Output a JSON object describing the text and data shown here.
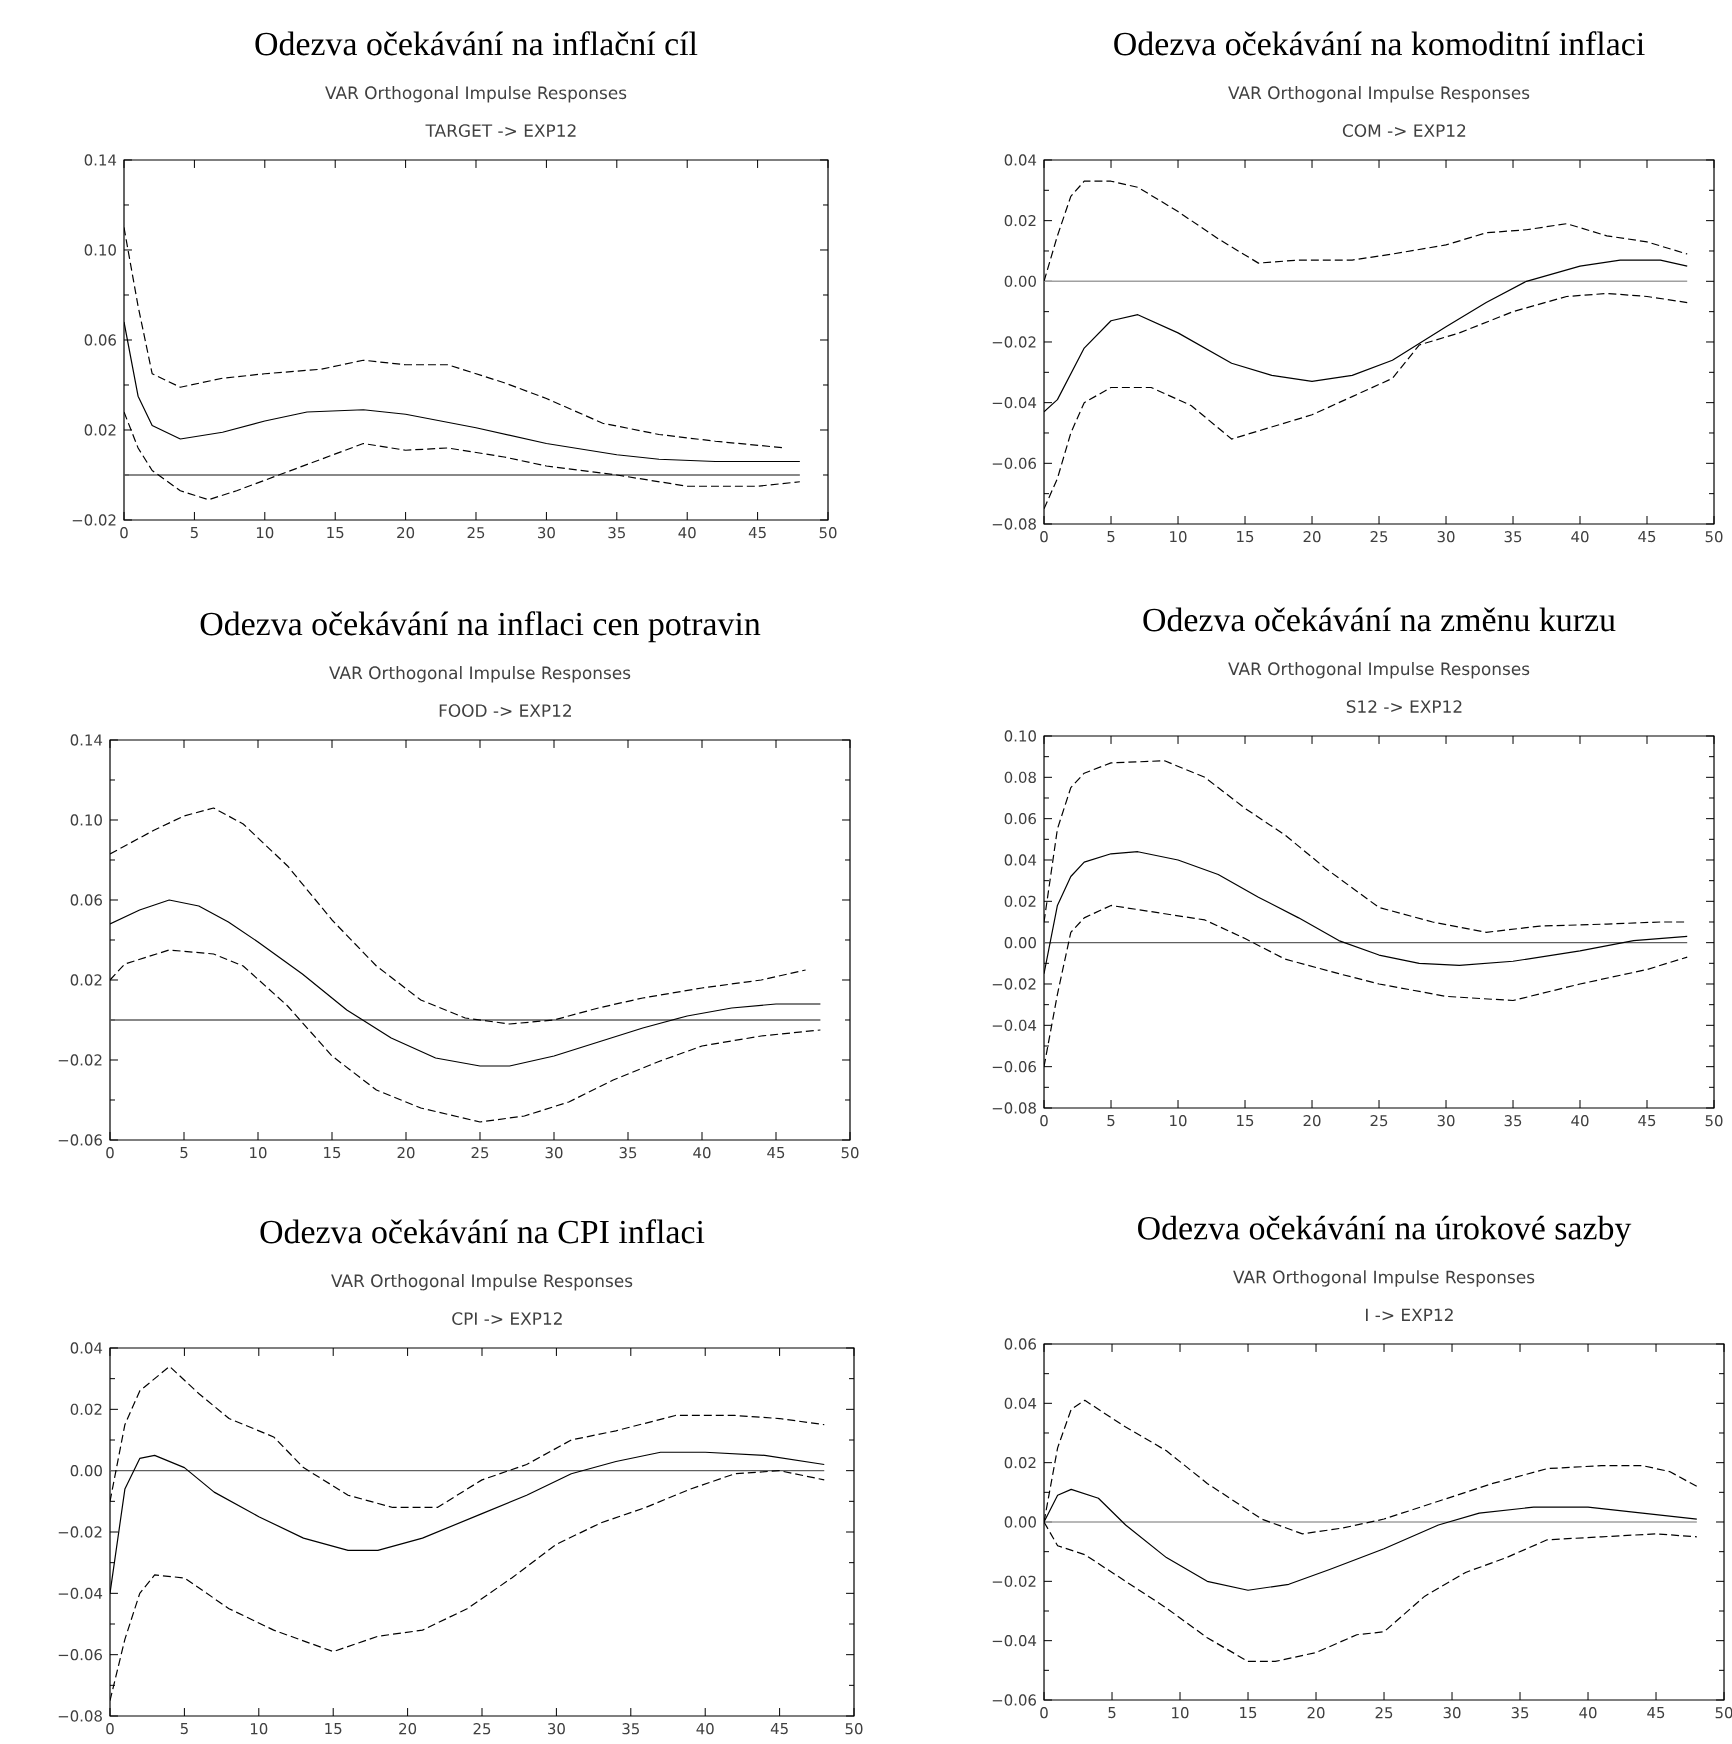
{
  "chart_data": [
    {
      "type": "line",
      "title": "Odezva očekávání na inflační cíl",
      "subtitle": "VAR Orthogonal Impulse Responses",
      "annotations": [
        "TARGET -> EXP12"
      ],
      "xlim": [
        0,
        50
      ],
      "xticks": [
        0,
        5,
        10,
        15,
        20,
        25,
        30,
        35,
        40,
        45,
        50
      ],
      "ylim": [
        -0.02,
        0.14
      ],
      "yticks": [
        {
          "value": -0.02,
          "label": "−0.02"
        },
        {
          "value": 0.02,
          "label": "0.02"
        },
        {
          "value": 0.06,
          "label": "0.06"
        },
        {
          "value": 0.1,
          "label": "0.10"
        },
        {
          "value": 0.14,
          "label": "0.14"
        }
      ],
      "ref_lines": [
        {
          "axis": "y",
          "value": 0,
          "color": "#606060"
        }
      ],
      "series": [
        {
          "color": "#000000",
          "line_style": "solid",
          "x": [
            0,
            1,
            2,
            4,
            7,
            10,
            13,
            17,
            20,
            25,
            30,
            35,
            38,
            42,
            48
          ],
          "values": [
            0.068,
            0.035,
            0.022,
            0.016,
            0.019,
            0.024,
            0.028,
            0.029,
            0.027,
            0.021,
            0.014,
            0.009,
            0.007,
            0.006,
            0.006
          ]
        },
        {
          "color": "#000000",
          "line_style": "dashed",
          "x": [
            0,
            1,
            2,
            4,
            7,
            10,
            14,
            17,
            20,
            23,
            27,
            30,
            34,
            38,
            42,
            47
          ],
          "values": [
            0.11,
            0.075,
            0.045,
            0.039,
            0.043,
            0.045,
            0.047,
            0.051,
            0.049,
            0.049,
            0.041,
            0.034,
            0.023,
            0.018,
            0.015,
            0.012
          ]
        },
        {
          "color": "#000000",
          "line_style": "dashed",
          "x": [
            0,
            1,
            2,
            4,
            6,
            8,
            11,
            14,
            17,
            20,
            23,
            27,
            30,
            35,
            40,
            45,
            48
          ],
          "values": [
            0.028,
            0.012,
            0.002,
            -0.007,
            -0.011,
            -0.007,
            0.0,
            0.007,
            0.014,
            0.011,
            0.012,
            0.008,
            0.004,
            0.0,
            -0.005,
            -0.005,
            -0.003
          ]
        }
      ]
    },
    {
      "type": "line",
      "title": "Odezva očekávání na komoditní inflaci",
      "subtitle": "VAR Orthogonal Impulse Responses",
      "annotations": [
        "COM -> EXP12"
      ],
      "xlim": [
        0,
        50
      ],
      "xticks": [
        0,
        5,
        10,
        15,
        20,
        25,
        30,
        35,
        40,
        45,
        50
      ],
      "ylim": [
        -0.08,
        0.04
      ],
      "yticks": [
        {
          "value": -0.08,
          "label": "−0.08"
        },
        {
          "value": -0.06,
          "label": "−0.06"
        },
        {
          "value": -0.04,
          "label": "−0.04"
        },
        {
          "value": -0.02,
          "label": "−0.02"
        },
        {
          "value": 0,
          "label": "0.00"
        },
        {
          "value": 0.02,
          "label": "0.02"
        },
        {
          "value": 0.04,
          "label": "0.04"
        }
      ],
      "ref_lines": [
        {
          "axis": "y",
          "value": 0,
          "color": "#a0a0a0"
        }
      ],
      "series": [
        {
          "color": "#000000",
          "line_style": "solid",
          "x": [
            0,
            1,
            3,
            5,
            7,
            10,
            14,
            17,
            20,
            23,
            26,
            30,
            33,
            36,
            40,
            43,
            46,
            48
          ],
          "values": [
            -0.043,
            -0.039,
            -0.022,
            -0.013,
            -0.011,
            -0.017,
            -0.027,
            -0.031,
            -0.033,
            -0.031,
            -0.026,
            -0.015,
            -0.007,
            0.0,
            0.005,
            0.007,
            0.007,
            0.005
          ]
        },
        {
          "color": "#000000",
          "line_style": "dashed",
          "x": [
            0,
            1,
            2,
            3,
            5,
            7,
            10,
            13,
            16,
            19,
            23,
            26,
            30,
            33,
            36,
            39,
            42,
            45,
            48
          ],
          "values": [
            0.0,
            0.015,
            0.028,
            0.033,
            0.033,
            0.031,
            0.023,
            0.014,
            0.006,
            0.007,
            0.007,
            0.009,
            0.012,
            0.016,
            0.017,
            0.019,
            0.015,
            0.013,
            0.009
          ]
        },
        {
          "color": "#000000",
          "line_style": "dashed",
          "x": [
            0,
            1,
            2,
            3,
            5,
            8,
            11,
            14,
            17,
            20,
            23,
            26,
            28,
            31,
            35,
            39,
            42,
            45,
            48
          ],
          "values": [
            -0.075,
            -0.065,
            -0.05,
            -0.04,
            -0.035,
            -0.035,
            -0.041,
            -0.052,
            -0.048,
            -0.044,
            -0.038,
            -0.032,
            -0.021,
            -0.017,
            -0.01,
            -0.005,
            -0.004,
            -0.005,
            -0.007
          ]
        }
      ]
    },
    {
      "type": "line",
      "title": "Odezva očekávání na inflaci cen potravin",
      "subtitle": "VAR Orthogonal Impulse Responses",
      "annotations": [
        "FOOD -> EXP12"
      ],
      "xlim": [
        0,
        50
      ],
      "xticks": [
        0,
        5,
        10,
        15,
        20,
        25,
        30,
        35,
        40,
        45,
        50
      ],
      "ylim": [
        -0.06,
        0.14
      ],
      "yticks": [
        {
          "value": -0.06,
          "label": "−0.06"
        },
        {
          "value": -0.02,
          "label": "−0.02"
        },
        {
          "value": 0.02,
          "label": "0.02"
        },
        {
          "value": 0.06,
          "label": "0.06"
        },
        {
          "value": 0.1,
          "label": "0.10"
        },
        {
          "value": 0.14,
          "label": "0.14"
        }
      ],
      "ref_lines": [
        {
          "axis": "y",
          "value": 0,
          "color": "#606060"
        }
      ],
      "series": [
        {
          "color": "#000000",
          "line_style": "solid",
          "x": [
            0,
            2,
            4,
            6,
            8,
            10,
            13,
            16,
            19,
            22,
            25,
            27,
            30,
            33,
            36,
            39,
            42,
            45,
            48
          ],
          "values": [
            0.048,
            0.055,
            0.06,
            0.057,
            0.049,
            0.039,
            0.023,
            0.005,
            -0.009,
            -0.019,
            -0.023,
            -0.023,
            -0.018,
            -0.011,
            -0.004,
            0.002,
            0.006,
            0.008,
            0.008
          ]
        },
        {
          "color": "#000000",
          "line_style": "dashed",
          "x": [
            0,
            3,
            5,
            7,
            9,
            12,
            15,
            18,
            21,
            24,
            27,
            30,
            33,
            36,
            40,
            44,
            47
          ],
          "values": [
            0.083,
            0.095,
            0.102,
            0.106,
            0.098,
            0.077,
            0.05,
            0.027,
            0.01,
            0.001,
            -0.002,
            0.0,
            0.006,
            0.011,
            0.016,
            0.02,
            0.025
          ]
        },
        {
          "color": "#000000",
          "line_style": "dashed",
          "x": [
            0,
            1,
            4,
            7,
            9,
            12,
            15,
            18,
            21,
            25,
            28,
            31,
            34,
            37,
            40,
            44,
            48
          ],
          "values": [
            0.02,
            0.028,
            0.035,
            0.033,
            0.027,
            0.007,
            -0.018,
            -0.035,
            -0.044,
            -0.051,
            -0.048,
            -0.041,
            -0.03,
            -0.021,
            -0.013,
            -0.008,
            -0.005
          ]
        }
      ]
    },
    {
      "type": "line",
      "title": "Odezva očekávání na změnu kurzu",
      "subtitle": "VAR Orthogonal Impulse Responses",
      "annotations": [
        "S12 -> EXP12"
      ],
      "xlim": [
        0,
        50
      ],
      "xticks": [
        0,
        5,
        10,
        15,
        20,
        25,
        30,
        35,
        40,
        45,
        50
      ],
      "ylim": [
        -0.08,
        0.1
      ],
      "yticks": [
        {
          "value": -0.08,
          "label": "−0.08"
        },
        {
          "value": -0.06,
          "label": "−0.06"
        },
        {
          "value": -0.04,
          "label": "−0.04"
        },
        {
          "value": -0.02,
          "label": "−0.02"
        },
        {
          "value": 0,
          "label": "0.00"
        },
        {
          "value": 0.02,
          "label": "0.02"
        },
        {
          "value": 0.04,
          "label": "0.04"
        },
        {
          "value": 0.06,
          "label": "0.06"
        },
        {
          "value": 0.08,
          "label": "0.08"
        },
        {
          "value": 0.1,
          "label": "0.10"
        }
      ],
      "ref_lines": [
        {
          "axis": "y",
          "value": 0,
          "color": "#606060"
        }
      ],
      "series": [
        {
          "color": "#000000",
          "line_style": "solid",
          "x": [
            0,
            1,
            2,
            3,
            5,
            7,
            10,
            13,
            16,
            19,
            22,
            25,
            28,
            31,
            35,
            40,
            44,
            48
          ],
          "values": [
            -0.015,
            0.018,
            0.032,
            0.039,
            0.043,
            0.044,
            0.04,
            0.033,
            0.022,
            0.012,
            0.001,
            -0.006,
            -0.01,
            -0.011,
            -0.009,
            -0.004,
            0.001,
            0.003
          ]
        },
        {
          "color": "#000000",
          "line_style": "dashed",
          "x": [
            0,
            1,
            2,
            3,
            5,
            9,
            12,
            15,
            18,
            21,
            25,
            29,
            33,
            37,
            42,
            46,
            48
          ],
          "values": [
            0.01,
            0.055,
            0.075,
            0.082,
            0.087,
            0.088,
            0.08,
            0.065,
            0.052,
            0.036,
            0.017,
            0.01,
            0.005,
            0.008,
            0.009,
            0.01,
            0.01
          ]
        },
        {
          "color": "#000000",
          "line_style": "dashed",
          "x": [
            0,
            1,
            2,
            3,
            5,
            8,
            12,
            15,
            18,
            22,
            25,
            30,
            35,
            40,
            45,
            48
          ],
          "values": [
            -0.06,
            -0.025,
            0.005,
            0.012,
            0.018,
            0.015,
            0.011,
            0.002,
            -0.008,
            -0.015,
            -0.02,
            -0.026,
            -0.028,
            -0.02,
            -0.013,
            -0.007
          ]
        }
      ]
    },
    {
      "type": "line",
      "title": "Odezva očekávání na CPI inflaci",
      "subtitle": "VAR Orthogonal Impulse Responses",
      "annotations": [
        "CPI -> EXP12"
      ],
      "xlim": [
        0,
        50
      ],
      "xticks": [
        0,
        5,
        10,
        15,
        20,
        25,
        30,
        35,
        40,
        45,
        50
      ],
      "ylim": [
        -0.08,
        0.04
      ],
      "yticks": [
        {
          "value": -0.08,
          "label": "−0.08"
        },
        {
          "value": -0.06,
          "label": "−0.06"
        },
        {
          "value": -0.04,
          "label": "−0.04"
        },
        {
          "value": -0.02,
          "label": "−0.02"
        },
        {
          "value": 0,
          "label": "0.00"
        },
        {
          "value": 0.02,
          "label": "0.02"
        },
        {
          "value": 0.04,
          "label": "0.04"
        }
      ],
      "ref_lines": [
        {
          "axis": "y",
          "value": 0,
          "color": "#606060"
        }
      ],
      "series": [
        {
          "color": "#000000",
          "line_style": "solid",
          "x": [
            0,
            1,
            2,
            3,
            5,
            7,
            10,
            13,
            16,
            18,
            21,
            25,
            28,
            31,
            34,
            37,
            40,
            44,
            48
          ],
          "values": [
            -0.04,
            -0.006,
            0.004,
            0.005,
            0.001,
            -0.007,
            -0.015,
            -0.022,
            -0.026,
            -0.026,
            -0.022,
            -0.014,
            -0.008,
            -0.001,
            0.003,
            0.006,
            0.006,
            0.005,
            0.002
          ]
        },
        {
          "color": "#000000",
          "line_style": "dashed",
          "x": [
            0,
            1,
            2,
            4,
            6,
            8,
            11,
            13,
            16,
            19,
            22,
            25,
            28,
            31,
            34,
            38,
            42,
            45,
            48
          ],
          "values": [
            -0.01,
            0.015,
            0.026,
            0.034,
            0.025,
            0.017,
            0.011,
            0.001,
            -0.008,
            -0.012,
            -0.012,
            -0.003,
            0.002,
            0.01,
            0.013,
            0.018,
            0.018,
            0.017,
            0.015
          ]
        },
        {
          "color": "#000000",
          "line_style": "dashed",
          "x": [
            0,
            1,
            2,
            3,
            5,
            8,
            11,
            15,
            18,
            21,
            24,
            27,
            30,
            33,
            36,
            39,
            42,
            45,
            48
          ],
          "values": [
            -0.075,
            -0.055,
            -0.04,
            -0.034,
            -0.035,
            -0.045,
            -0.052,
            -0.059,
            -0.054,
            -0.052,
            -0.045,
            -0.035,
            -0.024,
            -0.017,
            -0.012,
            -0.006,
            -0.001,
            0.0,
            -0.003
          ]
        }
      ]
    },
    {
      "type": "line",
      "title": "Odezva očekávání na úrokové sazby",
      "subtitle": "VAR Orthogonal Impulse Responses",
      "annotations": [
        "I -> EXP12"
      ],
      "xlim": [
        0,
        50
      ],
      "xticks": [
        0,
        5,
        10,
        15,
        20,
        25,
        30,
        35,
        40,
        45,
        50
      ],
      "ylim": [
        -0.06,
        0.06
      ],
      "yticks": [
        {
          "value": -0.06,
          "label": "−0.06"
        },
        {
          "value": -0.04,
          "label": "−0.04"
        },
        {
          "value": -0.02,
          "label": "−0.02"
        },
        {
          "value": 0,
          "label": "0.00"
        },
        {
          "value": 0.02,
          "label": "0.02"
        },
        {
          "value": 0.04,
          "label": "0.04"
        },
        {
          "value": 0.06,
          "label": "0.06"
        }
      ],
      "ref_lines": [
        {
          "axis": "y",
          "value": 0,
          "color": "#a0a0a0"
        }
      ],
      "series": [
        {
          "color": "#000000",
          "line_style": "solid",
          "x": [
            0,
            1,
            2,
            4,
            6,
            9,
            12,
            15,
            18,
            21,
            25,
            29,
            32,
            36,
            40,
            44,
            48
          ],
          "values": [
            0.0,
            0.009,
            0.011,
            0.008,
            -0.001,
            -0.012,
            -0.02,
            -0.023,
            -0.021,
            -0.016,
            -0.009,
            -0.001,
            0.003,
            0.005,
            0.005,
            0.003,
            0.001
          ]
        },
        {
          "color": "#000000",
          "line_style": "dashed",
          "x": [
            0,
            1,
            2,
            3,
            6,
            9,
            12,
            16,
            19,
            22,
            25,
            29,
            33,
            37,
            41,
            44,
            46,
            48
          ],
          "values": [
            0.0,
            0.025,
            0.038,
            0.041,
            0.032,
            0.024,
            0.013,
            0.001,
            -0.004,
            -0.002,
            0.001,
            0.007,
            0.013,
            0.018,
            0.019,
            0.019,
            0.017,
            0.012
          ]
        },
        {
          "color": "#000000",
          "line_style": "dashed",
          "x": [
            0,
            1,
            3,
            6,
            9,
            12,
            15,
            17,
            20,
            23,
            25,
            28,
            31,
            34,
            37,
            41,
            45,
            48
          ],
          "values": [
            0.0,
            -0.008,
            -0.011,
            -0.02,
            -0.029,
            -0.039,
            -0.047,
            -0.047,
            -0.044,
            -0.038,
            -0.037,
            -0.025,
            -0.017,
            -0.012,
            -0.006,
            -0.005,
            -0.004,
            -0.005
          ]
        }
      ]
    }
  ]
}
